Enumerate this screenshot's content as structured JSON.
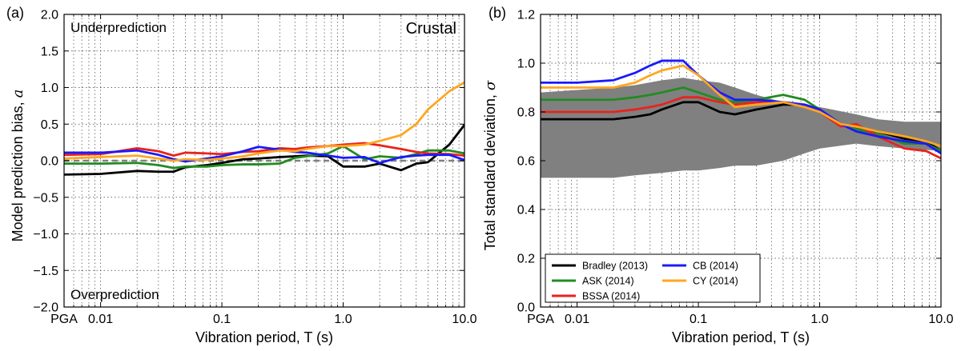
{
  "chart_data": [
    {
      "type": "line",
      "panel_label": "(a)",
      "xlabel": "Vibration period, T (s)",
      "ylabel": "Model prediction bias, ",
      "ylabel_symbol": "a",
      "x_scale": "log",
      "x_ticks": [
        "PGA",
        "0.01",
        "0.1",
        "1.0",
        "10.0"
      ],
      "xlim": [
        0.005,
        10
      ],
      "ylim": [
        -2.0,
        2.0
      ],
      "y_ticks": [
        "2.0",
        "1.5",
        "1.0",
        "0.5",
        "0.0",
        "−0.5",
        "−1.0",
        "−1.5",
        "−2.0"
      ],
      "grid": true,
      "annotations": {
        "top_left": "Underprediction",
        "bottom_left": "Overprediction",
        "top_right": "Crustal"
      },
      "reference_line": {
        "y": 0.0,
        "style": "dashed",
        "color": "#808080"
      },
      "series": [
        {
          "name": "Bradley (2013)",
          "color": "#000000",
          "points": [
            [
              0.005,
              -0.19
            ],
            [
              0.01,
              -0.18
            ],
            [
              0.02,
              -0.14
            ],
            [
              0.03,
              -0.15
            ],
            [
              0.04,
              -0.15
            ],
            [
              0.05,
              -0.09
            ],
            [
              0.075,
              -0.06
            ],
            [
              0.1,
              -0.03
            ],
            [
              0.15,
              0.02
            ],
            [
              0.2,
              0.03
            ],
            [
              0.3,
              0.05
            ],
            [
              0.4,
              0.06
            ],
            [
              0.5,
              0.07
            ],
            [
              0.75,
              0.06
            ],
            [
              1.0,
              -0.08
            ],
            [
              1.5,
              -0.08
            ],
            [
              2.0,
              -0.04
            ],
            [
              3.0,
              -0.13
            ],
            [
              4.0,
              -0.04
            ],
            [
              5.0,
              -0.02
            ],
            [
              7.5,
              0.22
            ],
            [
              10.0,
              0.49
            ]
          ]
        },
        {
          "name": "ASK (2014)",
          "color": "#228b22",
          "points": [
            [
              0.005,
              -0.04
            ],
            [
              0.01,
              -0.04
            ],
            [
              0.02,
              -0.03
            ],
            [
              0.03,
              -0.06
            ],
            [
              0.04,
              -0.1
            ],
            [
              0.05,
              -0.08
            ],
            [
              0.075,
              -0.08
            ],
            [
              0.1,
              -0.06
            ],
            [
              0.15,
              -0.05
            ],
            [
              0.2,
              -0.05
            ],
            [
              0.3,
              -0.04
            ],
            [
              0.4,
              0.04
            ],
            [
              0.5,
              0.06
            ],
            [
              0.75,
              0.1
            ],
            [
              1.0,
              0.2
            ],
            [
              1.5,
              0.02
            ],
            [
              2.0,
              0.06
            ],
            [
              3.0,
              0.04
            ],
            [
              4.0,
              0.09
            ],
            [
              5.0,
              0.14
            ],
            [
              7.5,
              0.14
            ],
            [
              10.0,
              0.1
            ]
          ]
        },
        {
          "name": "BSSA (2014)",
          "color": "#e8231c",
          "points": [
            [
              0.005,
              0.08
            ],
            [
              0.01,
              0.09
            ],
            [
              0.02,
              0.17
            ],
            [
              0.03,
              0.13
            ],
            [
              0.04,
              0.07
            ],
            [
              0.05,
              0.11
            ],
            [
              0.075,
              0.1
            ],
            [
              0.1,
              0.09
            ],
            [
              0.15,
              0.12
            ],
            [
              0.2,
              0.13
            ],
            [
              0.3,
              0.17
            ],
            [
              0.4,
              0.16
            ],
            [
              0.5,
              0.18
            ],
            [
              0.75,
              0.2
            ],
            [
              1.0,
              0.22
            ],
            [
              1.5,
              0.24
            ],
            [
              2.0,
              0.21
            ],
            [
              3.0,
              0.16
            ],
            [
              4.0,
              0.12
            ],
            [
              5.0,
              0.1
            ],
            [
              7.5,
              0.09
            ],
            [
              10.0,
              0.07
            ]
          ]
        },
        {
          "name": "CB (2014)",
          "color": "#1a1aff",
          "points": [
            [
              0.005,
              0.11
            ],
            [
              0.01,
              0.11
            ],
            [
              0.02,
              0.14
            ],
            [
              0.03,
              0.08
            ],
            [
              0.04,
              0.02
            ],
            [
              0.05,
              -0.01
            ],
            [
              0.075,
              0.03
            ],
            [
              0.1,
              0.06
            ],
            [
              0.15,
              0.13
            ],
            [
              0.2,
              0.19
            ],
            [
              0.3,
              0.15
            ],
            [
              0.4,
              0.12
            ],
            [
              0.5,
              0.11
            ],
            [
              0.75,
              0.07
            ],
            [
              1.0,
              0.04
            ],
            [
              1.5,
              0.05
            ],
            [
              2.0,
              -0.03
            ],
            [
              3.0,
              0.05
            ],
            [
              4.0,
              0.07
            ],
            [
              5.0,
              0.08
            ],
            [
              7.5,
              0.08
            ],
            [
              10.0,
              0.01
            ]
          ]
        },
        {
          "name": "CY (2014)",
          "color": "#ffa621",
          "points": [
            [
              0.005,
              0.03
            ],
            [
              0.01,
              0.05
            ],
            [
              0.02,
              0.07
            ],
            [
              0.03,
              0.03
            ],
            [
              0.04,
              0.0
            ],
            [
              0.05,
              0.02
            ],
            [
              0.075,
              0.01
            ],
            [
              0.1,
              0.03
            ],
            [
              0.15,
              0.06
            ],
            [
              0.2,
              0.1
            ],
            [
              0.3,
              0.14
            ],
            [
              0.4,
              0.13
            ],
            [
              0.5,
              0.16
            ],
            [
              0.75,
              0.2
            ],
            [
              1.0,
              0.2
            ],
            [
              1.5,
              0.22
            ],
            [
              2.0,
              0.27
            ],
            [
              3.0,
              0.35
            ],
            [
              4.0,
              0.5
            ],
            [
              5.0,
              0.7
            ],
            [
              7.5,
              0.95
            ],
            [
              10.0,
              1.07
            ]
          ]
        }
      ]
    },
    {
      "type": "line",
      "panel_label": "(b)",
      "xlabel": "Vibration period, T (s)",
      "ylabel": "Total standard deviation, ",
      "ylabel_symbol": "σ",
      "x_scale": "log",
      "x_ticks": [
        "PGA",
        "0.01",
        "0.1",
        "1.0",
        "10.0"
      ],
      "xlim": [
        0.005,
        10
      ],
      "ylim": [
        0.0,
        1.2
      ],
      "y_ticks": [
        "1.2",
        "1.0",
        "0.8",
        "0.6",
        "0.4",
        "0.2",
        "0.0"
      ],
      "grid": true,
      "legend_position": "bottom-left",
      "legend": [
        "Bradley (2013)",
        "ASK (2014)",
        "BSSA (2014)",
        "CB (2014)",
        "CY (2014)"
      ],
      "band": {
        "color": "#808080",
        "upper": [
          [
            0.005,
            0.88
          ],
          [
            0.01,
            0.89
          ],
          [
            0.02,
            0.9
          ],
          [
            0.03,
            0.91
          ],
          [
            0.05,
            0.93
          ],
          [
            0.075,
            0.94
          ],
          [
            0.1,
            0.93
          ],
          [
            0.15,
            0.92
          ],
          [
            0.2,
            0.9
          ],
          [
            0.3,
            0.87
          ],
          [
            0.5,
            0.84
          ],
          [
            0.75,
            0.83
          ],
          [
            1.0,
            0.82
          ],
          [
            2.0,
            0.79
          ],
          [
            3.0,
            0.77
          ],
          [
            5.0,
            0.76
          ],
          [
            10.0,
            0.76
          ]
        ],
        "lower": [
          [
            0.005,
            0.53
          ],
          [
            0.01,
            0.53
          ],
          [
            0.02,
            0.53
          ],
          [
            0.03,
            0.54
          ],
          [
            0.05,
            0.55
          ],
          [
            0.075,
            0.56
          ],
          [
            0.1,
            0.56
          ],
          [
            0.15,
            0.57
          ],
          [
            0.2,
            0.58
          ],
          [
            0.3,
            0.58
          ],
          [
            0.5,
            0.6
          ],
          [
            0.75,
            0.63
          ],
          [
            1.0,
            0.65
          ],
          [
            2.0,
            0.67
          ],
          [
            3.0,
            0.66
          ],
          [
            5.0,
            0.65
          ],
          [
            10.0,
            0.64
          ]
        ]
      },
      "series": [
        {
          "name": "Bradley (2013)",
          "color": "#000000",
          "points": [
            [
              0.005,
              0.77
            ],
            [
              0.01,
              0.77
            ],
            [
              0.02,
              0.77
            ],
            [
              0.03,
              0.78
            ],
            [
              0.04,
              0.79
            ],
            [
              0.05,
              0.81
            ],
            [
              0.075,
              0.84
            ],
            [
              0.1,
              0.84
            ],
            [
              0.15,
              0.8
            ],
            [
              0.2,
              0.79
            ],
            [
              0.3,
              0.81
            ],
            [
              0.5,
              0.83
            ],
            [
              0.75,
              0.83
            ],
            [
              1.0,
              0.81
            ],
            [
              1.5,
              0.75
            ],
            [
              2.0,
              0.73
            ],
            [
              3.0,
              0.72
            ],
            [
              5.0,
              0.69
            ],
            [
              7.5,
              0.68
            ],
            [
              10.0,
              0.64
            ]
          ]
        },
        {
          "name": "ASK (2014)",
          "color": "#228b22",
          "points": [
            [
              0.005,
              0.85
            ],
            [
              0.01,
              0.85
            ],
            [
              0.02,
              0.85
            ],
            [
              0.03,
              0.86
            ],
            [
              0.04,
              0.87
            ],
            [
              0.05,
              0.88
            ],
            [
              0.075,
              0.9
            ],
            [
              0.1,
              0.88
            ],
            [
              0.15,
              0.85
            ],
            [
              0.2,
              0.84
            ],
            [
              0.3,
              0.85
            ],
            [
              0.5,
              0.87
            ],
            [
              0.75,
              0.85
            ],
            [
              1.0,
              0.81
            ],
            [
              1.5,
              0.75
            ],
            [
              2.0,
              0.73
            ],
            [
              3.0,
              0.71
            ],
            [
              5.0,
              0.67
            ],
            [
              7.5,
              0.67
            ],
            [
              10.0,
              0.64
            ]
          ]
        },
        {
          "name": "BSSA (2014)",
          "color": "#e8231c",
          "points": [
            [
              0.005,
              0.8
            ],
            [
              0.01,
              0.8
            ],
            [
              0.02,
              0.8
            ],
            [
              0.03,
              0.81
            ],
            [
              0.04,
              0.82
            ],
            [
              0.05,
              0.83
            ],
            [
              0.075,
              0.86
            ],
            [
              0.1,
              0.86
            ],
            [
              0.15,
              0.84
            ],
            [
              0.2,
              0.83
            ],
            [
              0.3,
              0.84
            ],
            [
              0.5,
              0.84
            ],
            [
              0.75,
              0.83
            ],
            [
              1.0,
              0.8
            ],
            [
              1.5,
              0.74
            ],
            [
              2.0,
              0.75
            ],
            [
              3.0,
              0.7
            ],
            [
              5.0,
              0.65
            ],
            [
              7.5,
              0.64
            ],
            [
              10.0,
              0.61
            ]
          ]
        },
        {
          "name": "CB (2014)",
          "color": "#1a1aff",
          "points": [
            [
              0.005,
              0.92
            ],
            [
              0.01,
              0.92
            ],
            [
              0.02,
              0.93
            ],
            [
              0.03,
              0.96
            ],
            [
              0.04,
              0.99
            ],
            [
              0.05,
              1.01
            ],
            [
              0.075,
              1.01
            ],
            [
              0.1,
              0.95
            ],
            [
              0.15,
              0.88
            ],
            [
              0.2,
              0.85
            ],
            [
              0.3,
              0.85
            ],
            [
              0.5,
              0.84
            ],
            [
              0.75,
              0.83
            ],
            [
              1.0,
              0.81
            ],
            [
              1.5,
              0.75
            ],
            [
              2.0,
              0.72
            ],
            [
              3.0,
              0.7
            ],
            [
              5.0,
              0.68
            ],
            [
              7.5,
              0.67
            ],
            [
              10.0,
              0.63
            ]
          ]
        },
        {
          "name": "CY (2014)",
          "color": "#ffa621",
          "points": [
            [
              0.005,
              0.9
            ],
            [
              0.01,
              0.9
            ],
            [
              0.02,
              0.9
            ],
            [
              0.03,
              0.92
            ],
            [
              0.04,
              0.95
            ],
            [
              0.05,
              0.97
            ],
            [
              0.075,
              0.99
            ],
            [
              0.1,
              0.95
            ],
            [
              0.15,
              0.87
            ],
            [
              0.2,
              0.82
            ],
            [
              0.3,
              0.83
            ],
            [
              0.5,
              0.84
            ],
            [
              0.75,
              0.82
            ],
            [
              1.0,
              0.8
            ],
            [
              1.5,
              0.75
            ],
            [
              2.0,
              0.74
            ],
            [
              3.0,
              0.72
            ],
            [
              5.0,
              0.7
            ],
            [
              7.5,
              0.68
            ],
            [
              10.0,
              0.66
            ]
          ]
        }
      ]
    }
  ]
}
